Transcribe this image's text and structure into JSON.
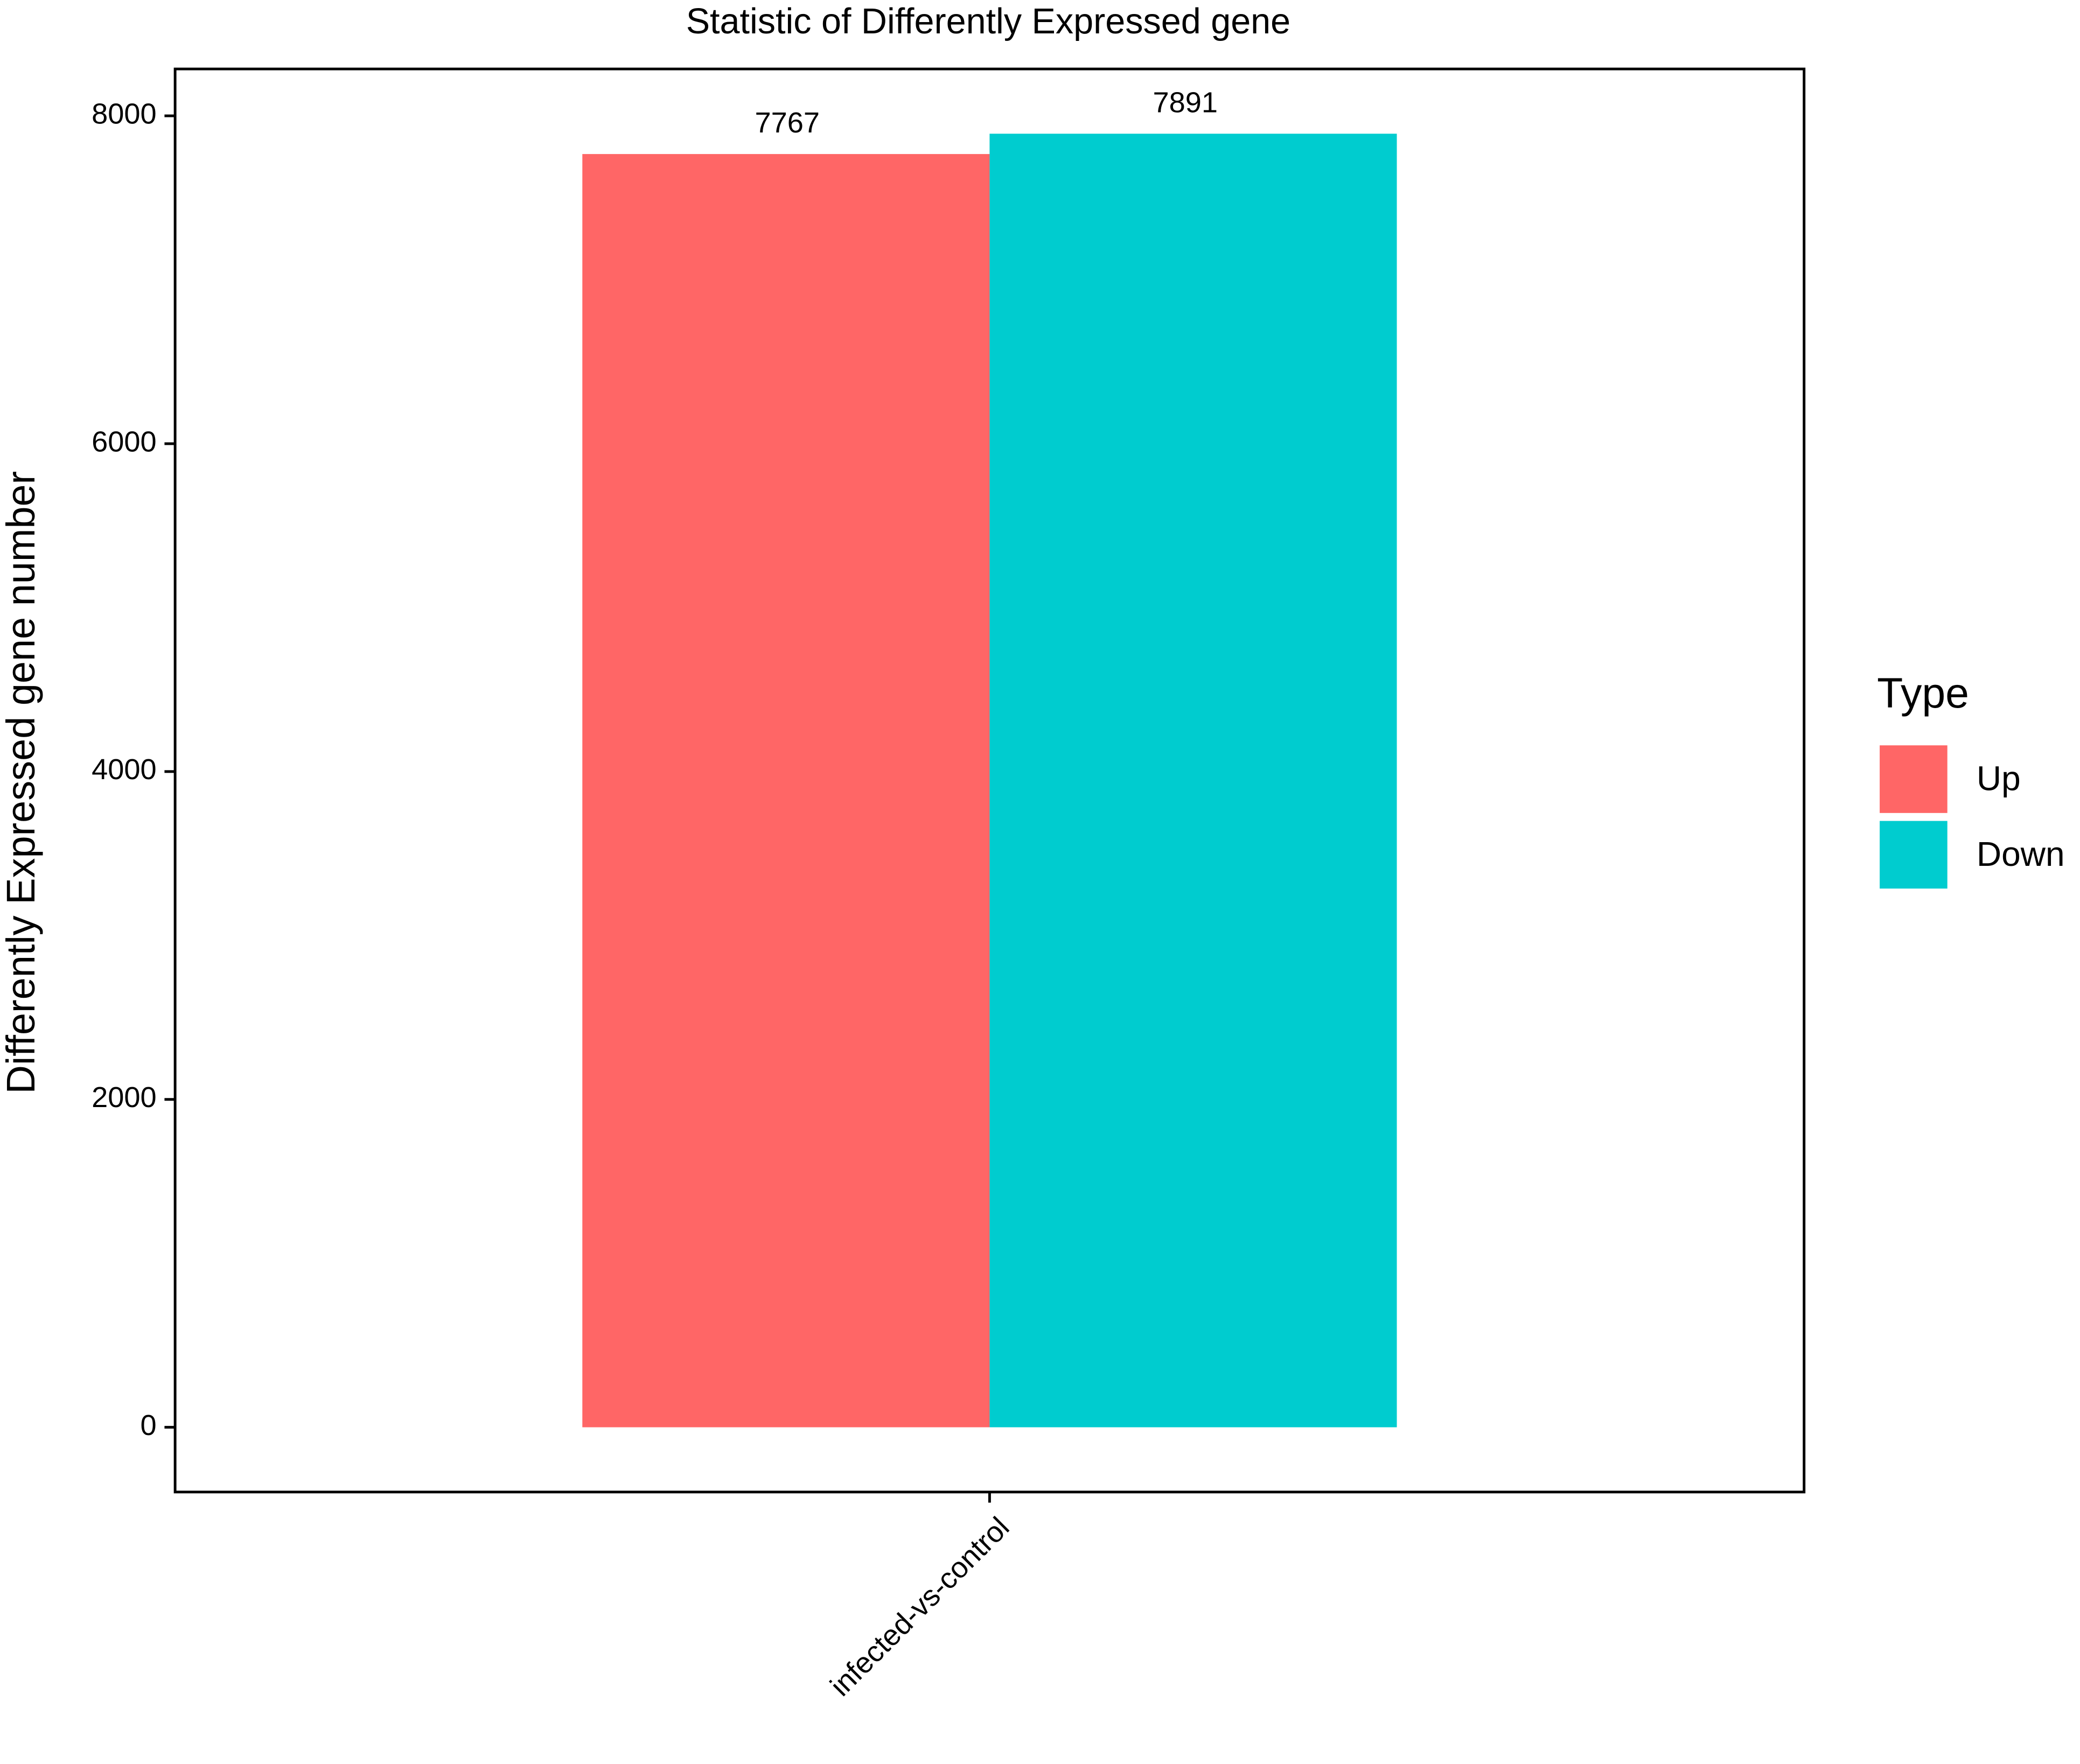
{
  "chart_data": {
    "type": "bar",
    "title": "Statistic of Differently Expressed gene",
    "y_label": "Differently Expressed gene number",
    "categories": [
      "infected-vs-control"
    ],
    "series": [
      {
        "name": "Up",
        "color": "#FF6666",
        "values": [
          7767
        ]
      },
      {
        "name": "Down",
        "color": "#00CCCF",
        "values": [
          7891
        ]
      }
    ],
    "legend_title": "Type",
    "legend_position": "right",
    "ylim": [
      -395,
      8286
    ],
    "yticks": [
      0,
      2000,
      4000,
      6000,
      8000
    ],
    "grid": false
  }
}
